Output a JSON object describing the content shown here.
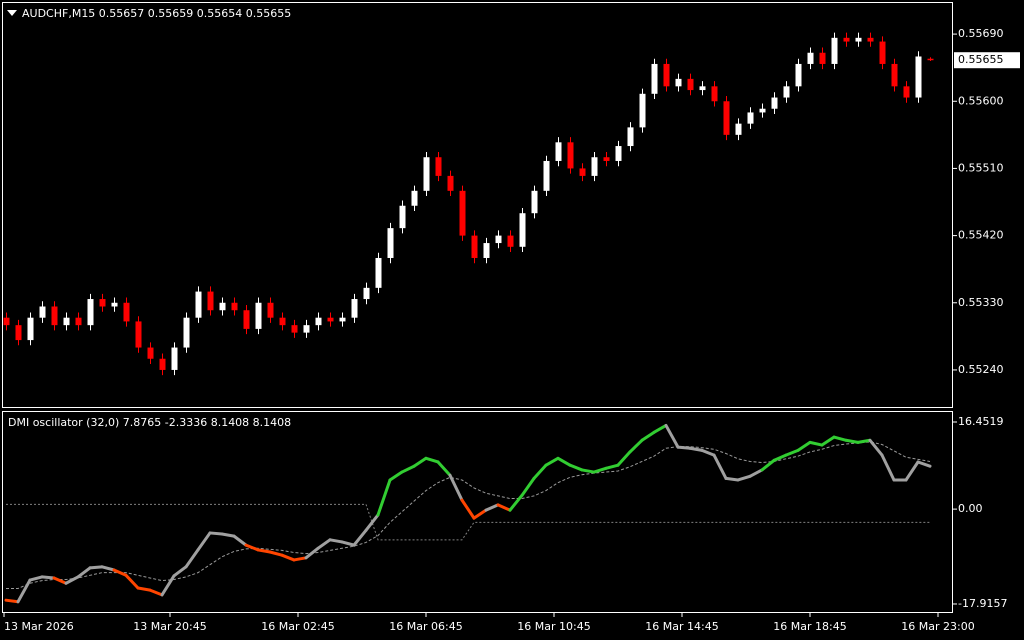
{
  "chart_data": [
    {
      "type": "candlestick",
      "title": "AUDCHF,M15  0.55657 0.55659 0.55654 0.55655",
      "open": [
        0.5531,
        0.553,
        0.5528,
        0.5531,
        0.55325,
        0.553,
        0.5531,
        0.553,
        0.55335,
        0.55325,
        0.5533,
        0.55305,
        0.5527,
        0.55255,
        0.5524,
        0.5527,
        0.5531,
        0.55345,
        0.5532,
        0.5533,
        0.5532,
        0.55295,
        0.5533,
        0.5531,
        0.553,
        0.5529,
        0.553,
        0.5531,
        0.55305,
        0.5531,
        0.55335,
        0.5535,
        0.5539,
        0.5543,
        0.5546,
        0.5548,
        0.55525,
        0.555,
        0.5548,
        0.5542,
        0.5539,
        0.5541,
        0.5542,
        0.55405,
        0.5545,
        0.5548,
        0.5552,
        0.55545,
        0.5551,
        0.555,
        0.55525,
        0.5552,
        0.5554,
        0.55565,
        0.5561,
        0.5565,
        0.5562,
        0.5563,
        0.55615,
        0.5562,
        0.556,
        0.55555,
        0.5557,
        0.55585,
        0.5559,
        0.55605,
        0.5562,
        0.5565,
        0.55665,
        0.5565,
        0.55685,
        0.5568,
        0.55685,
        0.5568,
        0.5565,
        0.5562,
        0.55605,
        0.55657
      ],
      "high": [
        0.55317,
        0.55307,
        0.55317,
        0.55332,
        0.55332,
        0.55317,
        0.55317,
        0.55342,
        0.55342,
        0.55337,
        0.55337,
        0.55312,
        0.55277,
        0.55262,
        0.55277,
        0.55317,
        0.55352,
        0.55352,
        0.55337,
        0.55337,
        0.55327,
        0.55337,
        0.55337,
        0.55317,
        0.55307,
        0.55307,
        0.55317,
        0.55317,
        0.55317,
        0.55342,
        0.55357,
        0.55397,
        0.55437,
        0.55467,
        0.55487,
        0.55532,
        0.55532,
        0.55507,
        0.55487,
        0.55427,
        0.55417,
        0.55427,
        0.55427,
        0.55457,
        0.55487,
        0.55527,
        0.55552,
        0.55552,
        0.55517,
        0.55532,
        0.55532,
        0.55547,
        0.55572,
        0.55617,
        0.55657,
        0.55657,
        0.55637,
        0.55637,
        0.55627,
        0.55627,
        0.55607,
        0.55577,
        0.55592,
        0.55597,
        0.55612,
        0.55627,
        0.55657,
        0.55672,
        0.55672,
        0.55692,
        0.55692,
        0.55692,
        0.55692,
        0.55687,
        0.55657,
        0.55627,
        0.55667,
        0.55659
      ],
      "low": [
        0.55293,
        0.55273,
        0.55273,
        0.55303,
        0.55293,
        0.55293,
        0.55293,
        0.55293,
        0.55318,
        0.55318,
        0.55298,
        0.55263,
        0.55248,
        0.55233,
        0.55233,
        0.55263,
        0.55303,
        0.55313,
        0.55313,
        0.55313,
        0.55288,
        0.55288,
        0.55303,
        0.55293,
        0.55283,
        0.55283,
        0.55293,
        0.55298,
        0.55298,
        0.55303,
        0.55328,
        0.55343,
        0.55383,
        0.55423,
        0.55453,
        0.55473,
        0.55493,
        0.55473,
        0.55413,
        0.55383,
        0.55383,
        0.55403,
        0.55398,
        0.55398,
        0.55443,
        0.55473,
        0.55513,
        0.55503,
        0.55493,
        0.55493,
        0.55513,
        0.55513,
        0.55533,
        0.55558,
        0.55603,
        0.55613,
        0.55613,
        0.55608,
        0.55608,
        0.55593,
        0.55548,
        0.55548,
        0.55563,
        0.55578,
        0.55583,
        0.55598,
        0.55613,
        0.55643,
        0.55643,
        0.55643,
        0.55673,
        0.55673,
        0.55673,
        0.55643,
        0.55613,
        0.55598,
        0.55598,
        0.55654
      ],
      "close": [
        0.553,
        0.5528,
        0.5531,
        0.55325,
        0.553,
        0.5531,
        0.553,
        0.55335,
        0.55325,
        0.5533,
        0.55305,
        0.5527,
        0.55255,
        0.5524,
        0.5527,
        0.5531,
        0.55345,
        0.5532,
        0.5533,
        0.5532,
        0.55295,
        0.5533,
        0.5531,
        0.553,
        0.5529,
        0.553,
        0.5531,
        0.55305,
        0.5531,
        0.55335,
        0.5535,
        0.5539,
        0.5543,
        0.5546,
        0.5548,
        0.55525,
        0.555,
        0.5548,
        0.5542,
        0.5539,
        0.5541,
        0.5542,
        0.55405,
        0.5545,
        0.5548,
        0.5552,
        0.55545,
        0.5551,
        0.555,
        0.55525,
        0.5552,
        0.5554,
        0.55565,
        0.5561,
        0.5565,
        0.5562,
        0.5563,
        0.55615,
        0.5562,
        0.556,
        0.55555,
        0.5557,
        0.55585,
        0.5559,
        0.55605,
        0.5562,
        0.5565,
        0.55665,
        0.5565,
        0.55685,
        0.5568,
        0.55685,
        0.5568,
        0.5565,
        0.5562,
        0.55605,
        0.5566,
        0.55655
      ],
      "up_color": "#ffffff",
      "down_color": "#ff0000",
      "ylim": [
        0.55189,
        0.55733
      ],
      "yticks": [
        {
          "value": 0.5569,
          "label": "0.55690"
        },
        {
          "value": 0.556,
          "label": "0.55600"
        },
        {
          "value": 0.5551,
          "label": "0.55510"
        },
        {
          "value": 0.5542,
          "label": "0.55420"
        },
        {
          "value": 0.5533,
          "label": "0.55330"
        },
        {
          "value": 0.5524,
          "label": "0.55240"
        }
      ],
      "last_price": {
        "value": 0.55655,
        "label": "0.55655"
      },
      "x_labels": [
        "13 Mar 2026",
        "13 Mar 20:45",
        "16 Mar 02:45",
        "16 Mar 06:45",
        "16 Mar 10:45",
        "16 Mar 14:45",
        "16 Mar 18:45",
        "16 Mar 23:00"
      ]
    },
    {
      "type": "oscillator",
      "title": "DMI oscillator (32,0) 7.8765 -2.3336 8.1408 8.1408",
      "values": [
        -17.2,
        -17.5,
        -13.4,
        -12.8,
        -13.0,
        -14.0,
        -12.8,
        -11.1,
        -10.9,
        -11.5,
        -12.5,
        -14.9,
        -15.3,
        -16.2,
        -12.6,
        -10.9,
        -7.7,
        -4.5,
        -4.7,
        -5.1,
        -6.8,
        -7.7,
        -8.1,
        -8.7,
        -9.6,
        -9.2,
        -7.4,
        -5.8,
        -6.2,
        -6.8,
        -4.0,
        -1.1,
        5.5,
        7.0,
        8.1,
        9.6,
        8.9,
        6.4,
        1.7,
        -1.7,
        -0.2,
        0.8,
        -0.2,
        2.6,
        5.8,
        8.3,
        9.6,
        8.3,
        7.4,
        7.0,
        7.7,
        8.3,
        10.8,
        13.0,
        14.5,
        15.8,
        11.7,
        11.5,
        11.1,
        10.2,
        5.8,
        5.5,
        6.2,
        7.4,
        9.2,
        10.2,
        11.1,
        12.6,
        12.1,
        13.6,
        13.0,
        12.6,
        13.0,
        10.2,
        5.5,
        5.5,
        8.9,
        8.1
      ],
      "signal": [
        -15,
        -15,
        -14,
        -13.5,
        -13.3,
        -13.3,
        -13,
        -12.5,
        -12,
        -12,
        -12,
        -12.5,
        -13,
        -13.5,
        -13.3,
        -12.8,
        -12,
        -10.5,
        -9,
        -8,
        -7.5,
        -7.4,
        -7.6,
        -7.8,
        -8.2,
        -8.4,
        -8.2,
        -7.8,
        -7.4,
        -7,
        -6.3,
        -5,
        -2.5,
        -0.5,
        1.5,
        3.5,
        5,
        6,
        5.5,
        4,
        3,
        2.5,
        2,
        2,
        2.5,
        3.5,
        5,
        6,
        6.5,
        6.8,
        7,
        7.2,
        8,
        9,
        10,
        11.5,
        11.8,
        11.8,
        11.6,
        11.3,
        10.5,
        9.5,
        9,
        8.8,
        9,
        9.5,
        10,
        10.8,
        11.3,
        12,
        12.3,
        12.5,
        12.7,
        12.2,
        11,
        9.8,
        9.4,
        9
      ],
      "level": [
        0.9,
        0.9,
        0.9,
        0.9,
        0.9,
        0.9,
        0.9,
        0.9,
        0.9,
        0.9,
        0.9,
        0.9,
        0.9,
        0.9,
        0.9,
        0.9,
        0.9,
        0.9,
        0.9,
        0.9,
        0.9,
        0.9,
        0.9,
        0.9,
        0.9,
        0.9,
        0.9,
        0.9,
        0.9,
        0.9,
        0.9,
        -5.8,
        -5.8,
        -5.8,
        -5.8,
        -5.8,
        -5.8,
        -5.8,
        -5.8,
        -2.5,
        -2.5,
        -2.5,
        -2.5,
        -2.5,
        -2.5,
        -2.5,
        -2.5,
        -2.5,
        -2.5,
        -2.5,
        -2.5,
        -2.5,
        -2.5,
        -2.5,
        -2.5,
        -2.5,
        -2.5,
        -2.5,
        -2.5,
        -2.5,
        -2.5,
        -2.5,
        -2.5,
        -2.5,
        -2.5,
        -2.5,
        -2.5,
        -2.5,
        -2.5,
        -2.5,
        -2.5,
        -2.5,
        -2.5,
        -2.5,
        -2.5,
        -2.5,
        -2.5,
        -2.5
      ],
      "up_color": "#32cd32",
      "down_color": "#ff4500",
      "neutral_color": "#a0a0a0",
      "signal_color": "#9a9a9a",
      "ylim": [
        -19.43,
        18.34
      ],
      "yticks": [
        16.4519,
        {
          "value": 0,
          "label": "0.00"
        },
        -17.9157
      ]
    }
  ]
}
